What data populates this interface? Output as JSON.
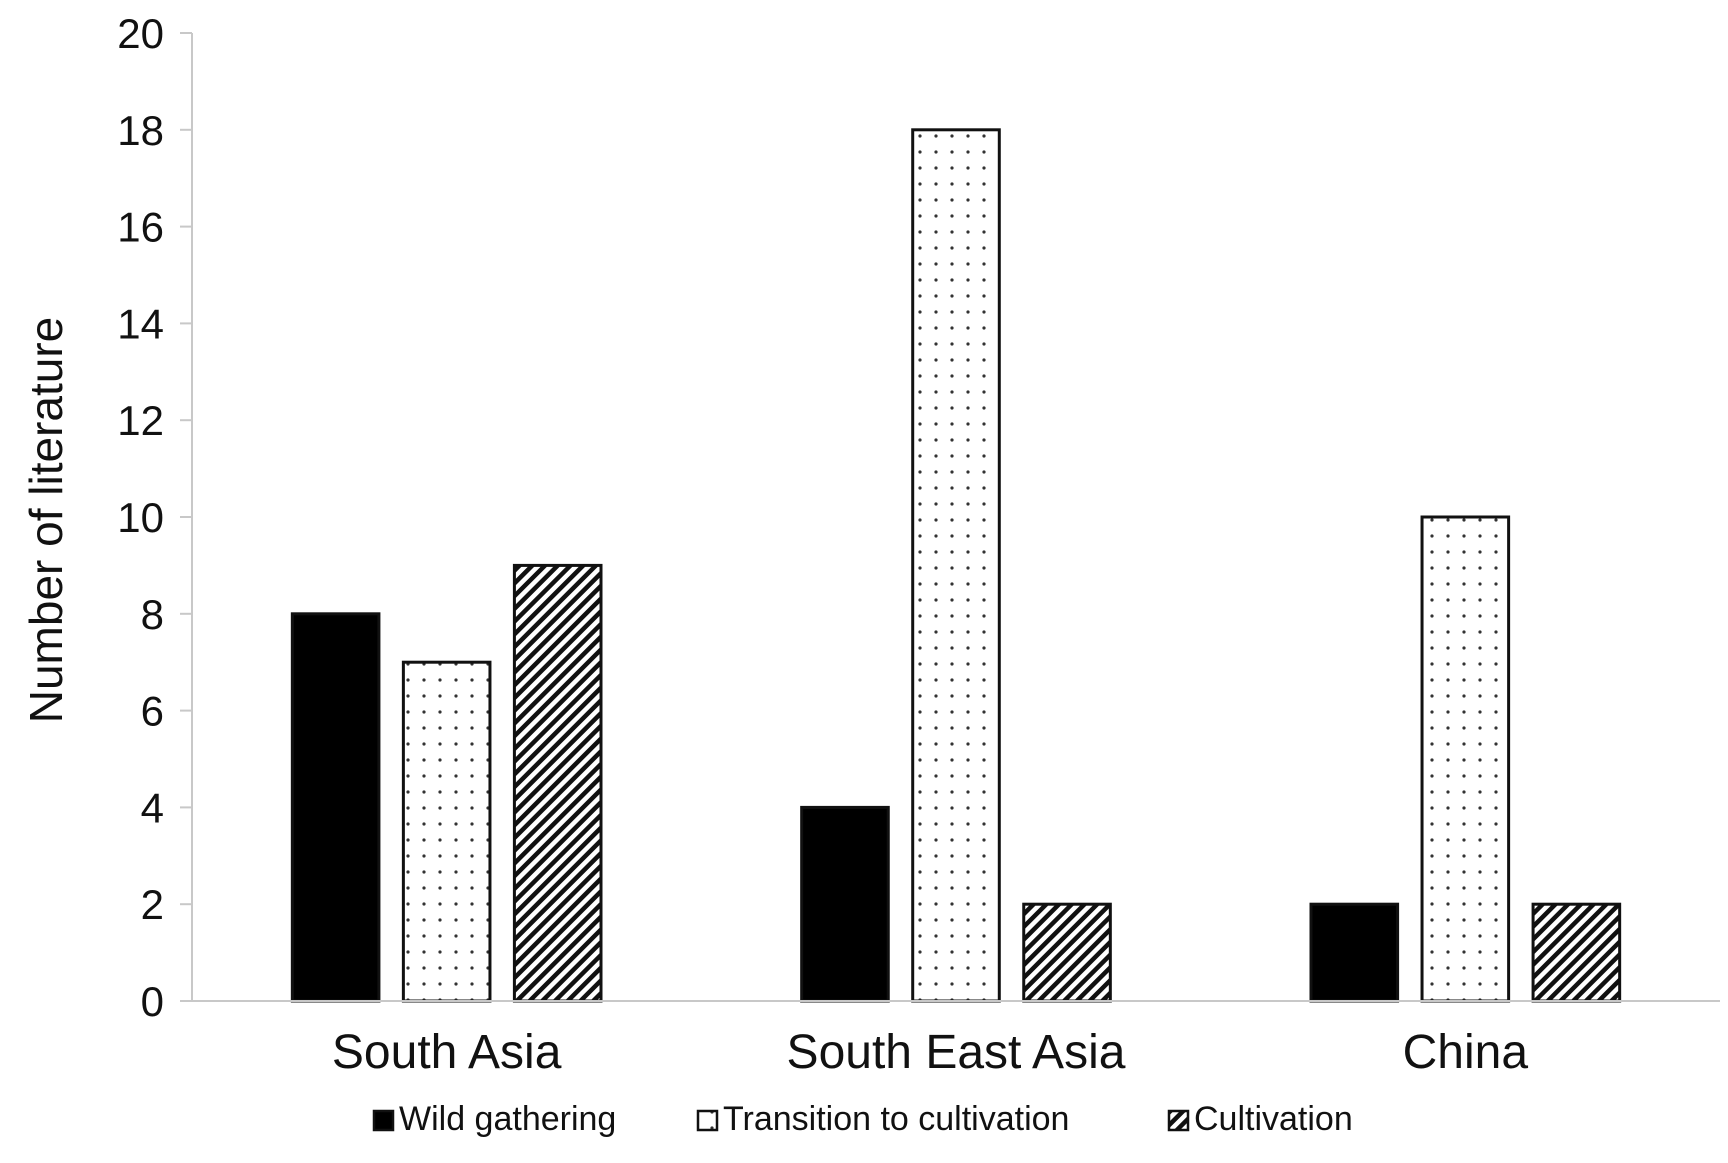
{
  "chart_data": {
    "type": "bar",
    "title": "",
    "xlabel": "",
    "ylabel": "Number of literature",
    "ylim": [
      0,
      20
    ],
    "yticks": [
      0,
      2,
      4,
      6,
      8,
      10,
      12,
      14,
      16,
      18,
      20
    ],
    "categories": [
      "South Asia",
      "South East Asia",
      "China"
    ],
    "series": [
      {
        "name": "Wild gathering",
        "pattern": "solid",
        "color": "#000000",
        "values": [
          8,
          4,
          2
        ]
      },
      {
        "name": "Transition to cultivation",
        "pattern": "dots",
        "color": "#000000",
        "values": [
          7,
          18,
          10
        ]
      },
      {
        "name": "Cultivation",
        "pattern": "diagonal-stripes",
        "color": "#000000",
        "values": [
          9,
          2,
          2
        ]
      }
    ],
    "legend_position": "bottom",
    "grid": false
  }
}
